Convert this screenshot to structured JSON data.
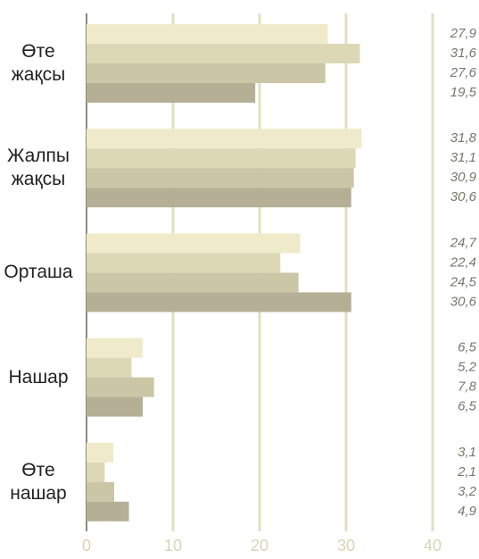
{
  "chart_data": {
    "type": "hbar",
    "categories": [
      "Өте жақсы",
      "Жалпы жақсы",
      "Орташа",
      "Нашар",
      "Өте нашар"
    ],
    "series": [
      {
        "color": "#efebca",
        "values": [
          27.9,
          31.8,
          24.7,
          6.5,
          3.1
        ],
        "value_labels": [
          "27,9",
          "31,8",
          "24,7",
          "6,5",
          "3,1"
        ]
      },
      {
        "color": "#dcd8b6",
        "values": [
          31.6,
          31.1,
          22.4,
          5.2,
          2.1
        ],
        "value_labels": [
          "31,6",
          "31,1",
          "22,4",
          "5,2",
          "2,1"
        ]
      },
      {
        "color": "#cbc6a6",
        "values": [
          27.6,
          30.9,
          24.5,
          7.8,
          3.2
        ],
        "value_labels": [
          "27,6",
          "30,9",
          "24,5",
          "7,8",
          "3,2"
        ]
      },
      {
        "color": "#b5b095",
        "values": [
          19.5,
          30.6,
          30.6,
          6.5,
          4.9
        ],
        "value_labels": [
          "19,5",
          "30,6",
          "30,6",
          "6,5",
          "4,9"
        ]
      }
    ],
    "xlim": [
      0,
      40
    ],
    "xticks": [
      0,
      10,
      20,
      30,
      40
    ],
    "grid": true
  }
}
